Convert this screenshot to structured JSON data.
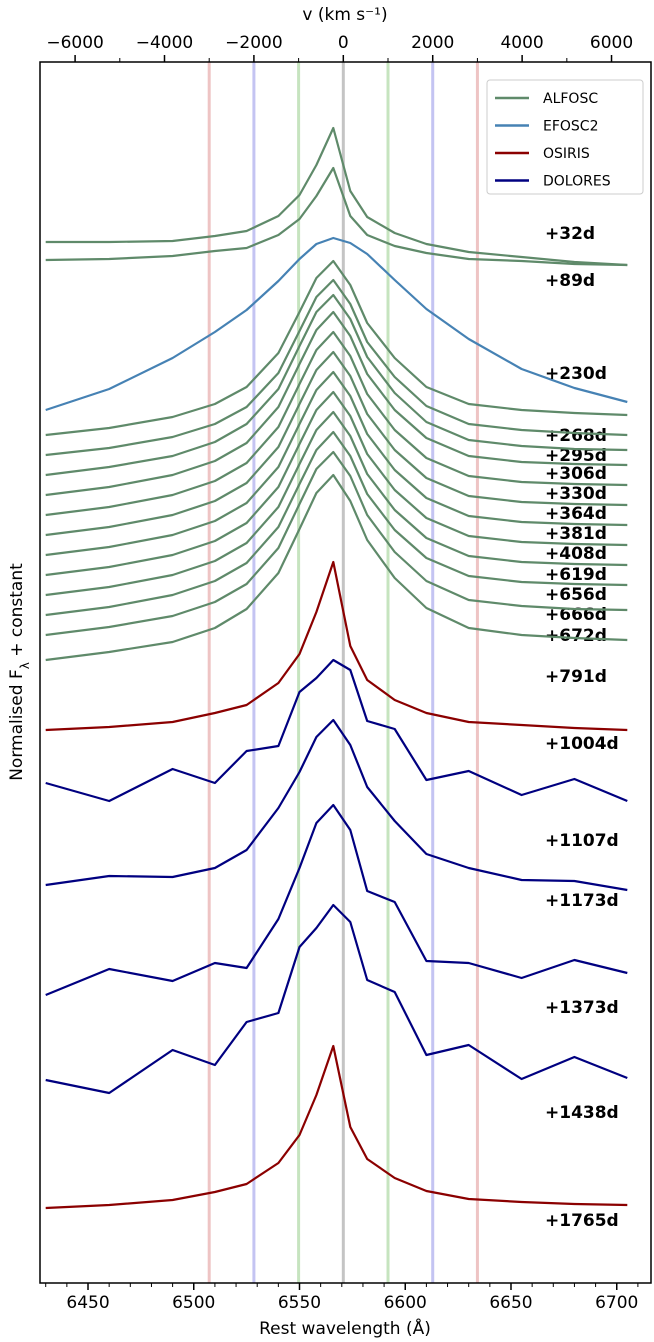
{
  "chart_data": {
    "type": "line",
    "x_label": "Rest wavelength (Å)",
    "x2_label": "v (km s⁻¹)",
    "y_label": {
      "main": "Normalised F",
      "sub": "λ",
      "rest": " + constant"
    },
    "xlim": [
      6427.3,
      6716.2
    ],
    "xticks": [
      6450,
      6500,
      6550,
      6600,
      6650,
      6700
    ],
    "xticks_minor": [
      6430,
      6440,
      6460,
      6470,
      6480,
      6490,
      6510,
      6520,
      6530,
      6540,
      6560,
      6570,
      6580,
      6590,
      6610,
      6620,
      6630,
      6640,
      6660,
      6670,
      6680,
      6690,
      6710
    ],
    "x2lim": [
      -6785,
      6883
    ],
    "x2ticks": [
      {
        "value": -6000,
        "label": "−6000"
      },
      {
        "value": -4000,
        "label": "−4000"
      },
      {
        "value": -2000,
        "label": "−2000"
      },
      0,
      2000,
      4000,
      6000
    ],
    "x2ticks_minor": [
      -5000,
      -3000,
      -1000,
      1000,
      3000,
      5000
    ],
    "vlines": [
      {
        "value": -3000,
        "color": "#eec4c4"
      },
      {
        "value": -2000,
        "color": "#c4c4f2"
      },
      {
        "value": -1000,
        "color": "#c6e4bf"
      },
      {
        "value": 0,
        "color": "#c4c4c4"
      },
      {
        "value": 1000,
        "color": "#c6e4bf"
      },
      {
        "value": 2000,
        "color": "#c4c4f2"
      },
      {
        "value": 3000,
        "color": "#eec4c4"
      }
    ],
    "ylim": [
      2.9,
      125
    ],
    "legend": [
      {
        "name": "ALFOSC",
        "color": "#5f8a6a"
      },
      {
        "name": "EFOSC2",
        "color": "#4682b4"
      },
      {
        "name": "OSIRIS",
        "color": "#8b0000"
      },
      {
        "name": "DOLORES",
        "color": "#000080"
      }
    ],
    "legend_loc": "upper right",
    "x": [
      6430,
      6460,
      6490,
      6510,
      6525,
      6540,
      6550,
      6558,
      6566,
      6574,
      6582,
      6595,
      6610,
      6630,
      6655,
      6680,
      6705
    ],
    "series": [
      {
        "name": "+32d",
        "color": "#5f8a6a",
        "values": [
          107.0,
          107.0,
          107.1,
          107.6,
          108.1,
          109.6,
          111.7,
          114.7,
          118.4,
          112.1,
          109.5,
          107.9,
          106.8,
          106.0,
          105.5,
          105.0,
          104.7
        ]
      },
      {
        "name": "+89d",
        "color": "#5f8a6a",
        "values": [
          105.2,
          105.3,
          105.6,
          106.1,
          106.4,
          107.7,
          109.3,
          111.6,
          114.4,
          109.6,
          107.7,
          106.6,
          105.9,
          105.3,
          105.1,
          104.8,
          104.7
        ]
      },
      {
        "name": "+230d",
        "color": "#4682b4",
        "values": [
          90.2,
          92.3,
          95.4,
          98.0,
          100.2,
          103.1,
          105.3,
          106.8,
          107.4,
          106.9,
          105.8,
          103.2,
          100.3,
          97.3,
          94.3,
          92.4,
          91.0
        ]
      },
      {
        "name": "+268d",
        "color": "#5f8a6a",
        "values": [
          87.7,
          88.4,
          89.5,
          90.8,
          92.5,
          95.9,
          100.0,
          103.4,
          105.1,
          102.7,
          98.9,
          95.4,
          92.5,
          90.8,
          90.2,
          89.9,
          89.7
        ]
      },
      {
        "name": "+295d",
        "color": "#5f8a6a",
        "values": [
          85.7,
          86.4,
          87.5,
          88.8,
          90.5,
          93.9,
          98.1,
          101.5,
          103.2,
          100.8,
          97.0,
          93.5,
          90.6,
          88.8,
          88.2,
          87.9,
          87.7
        ]
      },
      {
        "name": "+306d",
        "color": "#5f8a6a",
        "values": [
          83.7,
          84.5,
          85.6,
          87.0,
          88.8,
          92.3,
          96.6,
          100.0,
          101.7,
          99.3,
          95.5,
          91.9,
          89.0,
          87.2,
          86.6,
          86.3,
          86.2
        ]
      },
      {
        "name": "+330d",
        "color": "#5f8a6a",
        "values": [
          81.7,
          82.5,
          83.7,
          85.1,
          86.9,
          90.5,
          94.8,
          98.2,
          100.0,
          97.6,
          93.8,
          90.2,
          87.4,
          85.6,
          85.0,
          84.8,
          84.7
        ]
      },
      {
        "name": "+364d",
        "color": "#5f8a6a",
        "values": [
          79.7,
          80.5,
          81.7,
          83.1,
          84.9,
          88.5,
          92.8,
          96.2,
          98.0,
          95.6,
          91.8,
          88.2,
          85.4,
          83.6,
          83.0,
          82.8,
          82.7
        ]
      },
      {
        "name": "+381d",
        "color": "#5f8a6a",
        "values": [
          77.7,
          78.5,
          79.7,
          81.1,
          82.9,
          86.5,
          90.8,
          94.2,
          96.0,
          93.6,
          89.8,
          86.2,
          83.4,
          81.6,
          81.0,
          80.8,
          80.7
        ]
      },
      {
        "name": "+408d",
        "color": "#5f8a6a",
        "values": [
          75.7,
          76.5,
          77.7,
          79.1,
          80.9,
          84.5,
          88.8,
          92.2,
          94.0,
          91.6,
          87.8,
          84.2,
          81.4,
          79.6,
          79.0,
          78.8,
          78.7
        ]
      },
      {
        "name": "+619d",
        "color": "#5f8a6a",
        "values": [
          73.7,
          74.5,
          75.7,
          77.1,
          78.9,
          82.5,
          86.8,
          90.2,
          92.0,
          89.6,
          85.8,
          82.2,
          79.4,
          77.6,
          77.0,
          76.8,
          76.7
        ]
      },
      {
        "name": "+656d",
        "color": "#5f8a6a",
        "values": [
          71.7,
          72.5,
          73.7,
          75.1,
          76.9,
          80.5,
          84.8,
          88.2,
          90.0,
          87.6,
          83.8,
          80.2,
          77.4,
          75.6,
          75.0,
          74.8,
          74.7
        ]
      },
      {
        "name": "+666d",
        "color": "#5f8a6a",
        "values": [
          69.7,
          70.5,
          71.7,
          73.1,
          74.9,
          78.5,
          82.8,
          86.2,
          88.0,
          85.6,
          81.8,
          78.2,
          75.4,
          73.6,
          73.0,
          72.8,
          72.7
        ]
      },
      {
        "name": "+672d",
        "color": "#5f8a6a",
        "values": [
          67.7,
          68.5,
          69.6,
          71.0,
          72.8,
          76.4,
          80.8,
          84.3,
          86.0,
          83.6,
          79.7,
          76.0,
          73.1,
          71.2,
          70.6,
          70.3,
          70.2
        ]
      },
      {
        "name": "+791d",
        "color": "#5f8a6a",
        "values": [
          65.2,
          66.0,
          67.0,
          68.4,
          70.3,
          73.9,
          78.3,
          81.9,
          83.7,
          81.1,
          77.2,
          73.4,
          70.4,
          68.4,
          67.7,
          67.4,
          67.2
        ]
      },
      {
        "name": "+1004d",
        "color": "#8b0000",
        "values": [
          58.2,
          58.5,
          59.0,
          59.9,
          60.7,
          62.9,
          65.8,
          70.0,
          75.0,
          66.6,
          63.2,
          61.2,
          59.9,
          59.0,
          58.7,
          58.4,
          58.2
        ]
      },
      {
        "name": "+1107d",
        "color": "#000080",
        "values": [
          52.9,
          51.1,
          54.3,
          52.9,
          56.1,
          56.6,
          62.0,
          63.4,
          65.2,
          64.2,
          59.1,
          58.3,
          53.2,
          54.1,
          51.7,
          53.3,
          51.1
        ]
      },
      {
        "name": "+1173d",
        "color": "#000080",
        "values": [
          42.7,
          43.6,
          43.5,
          44.4,
          46.2,
          50.4,
          54.0,
          57.5,
          59.2,
          56.7,
          52.5,
          49.1,
          45.8,
          44.4,
          43.2,
          43.1,
          42.2
        ]
      },
      {
        "name": "+1373d",
        "color": "#000080",
        "values": [
          31.7,
          34.3,
          33.1,
          34.9,
          34.4,
          39.3,
          44.4,
          48.9,
          50.7,
          48.2,
          42.1,
          41.0,
          35.1,
          34.9,
          33.4,
          35.2,
          33.9
        ]
      },
      {
        "name": "+1438d",
        "color": "#000080",
        "values": [
          23.2,
          21.9,
          26.2,
          24.7,
          29.0,
          29.9,
          36.5,
          38.4,
          40.7,
          39.0,
          33.2,
          32.0,
          25.7,
          26.7,
          23.3,
          25.5,
          23.4
        ]
      },
      {
        "name": "+1765d",
        "color": "#8b0000",
        "values": [
          10.4,
          10.7,
          11.2,
          12.0,
          12.8,
          14.9,
          17.7,
          21.7,
          26.6,
          18.5,
          15.3,
          13.4,
          12.1,
          11.3,
          11.0,
          10.8,
          10.7
        ]
      }
    ]
  }
}
